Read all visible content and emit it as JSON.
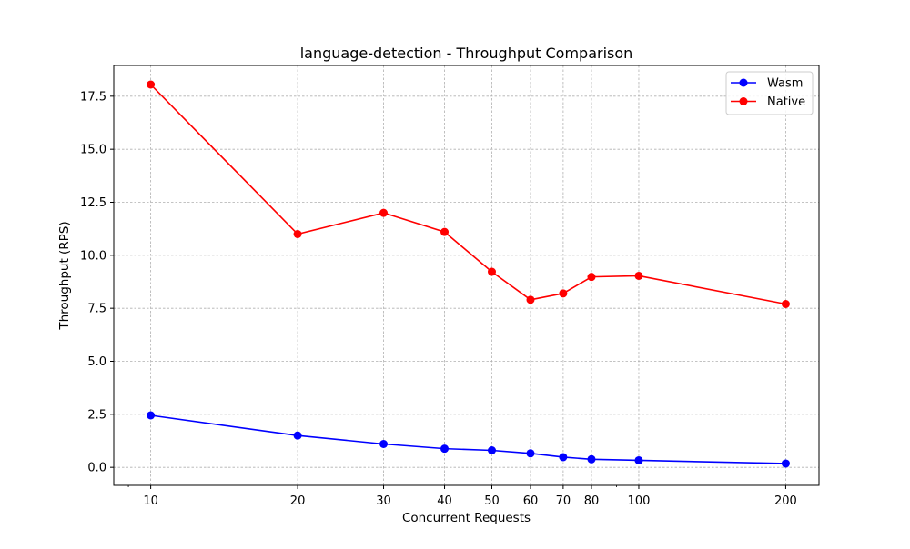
{
  "chart_data": {
    "type": "line",
    "title": "language-detection - Throughput Comparison",
    "xlabel": "Concurrent Requests",
    "ylabel": "Throughput (RPS)",
    "x_scale": "log",
    "x_ticks": [
      10,
      20,
      30,
      40,
      50,
      60,
      70,
      80,
      100,
      200
    ],
    "x_tick_labels": [
      "10",
      "20",
      "30",
      "40",
      "50",
      "60",
      "70",
      "80",
      "100",
      "200"
    ],
    "y_ticks": [
      0.0,
      2.5,
      5.0,
      7.5,
      10.0,
      12.5,
      15.0,
      17.5
    ],
    "y_tick_labels": [
      "0.0",
      "2.5",
      "5.0",
      "7.5",
      "10.0",
      "12.5",
      "15.0",
      "17.5"
    ],
    "xlim": [
      8.4,
      234
    ],
    "ylim": [
      -0.85,
      18.95
    ],
    "grid": true,
    "legend_position": "top-right",
    "x": [
      10,
      20,
      30,
      40,
      50,
      60,
      70,
      80,
      100,
      200
    ],
    "series": [
      {
        "name": "Wasm",
        "color": "#0000ff",
        "marker": "circle",
        "values": [
          2.45,
          1.5,
          1.1,
          0.88,
          0.8,
          0.66,
          0.48,
          0.38,
          0.33,
          0.18
        ]
      },
      {
        "name": "Native",
        "color": "#ff0000",
        "marker": "circle",
        "values": [
          18.05,
          11.0,
          12.0,
          11.1,
          9.22,
          7.9,
          8.2,
          8.98,
          9.03,
          7.7
        ]
      }
    ]
  }
}
